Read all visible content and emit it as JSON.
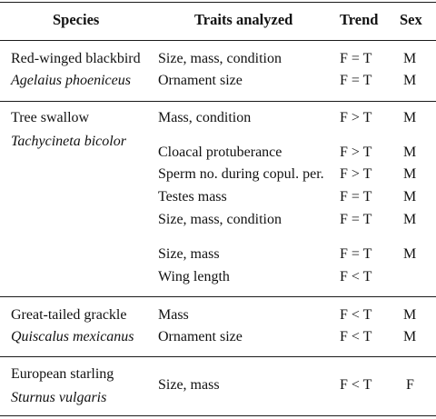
{
  "header": {
    "species": "Species",
    "traits": "Traits analyzed",
    "trend": "Trend",
    "sex": "Sex"
  },
  "groups": [
    {
      "common": "Red-winged blackbird",
      "latin": "Agelaius phoeniceus",
      "rows": [
        {
          "trait": "Size, mass, condition",
          "trend": "F = T",
          "sex": "M"
        },
        {
          "trait": "Ornament size",
          "trend": "F = T",
          "sex": "M"
        }
      ]
    },
    {
      "common": "Tree swallow",
      "latin": "Tachycineta bicolor",
      "rows": [
        {
          "trait": "Mass, condition",
          "trend": "F > T",
          "sex": "M"
        },
        {
          "trait": "Cloacal protuberance",
          "trend": "F > T",
          "sex": "M"
        },
        {
          "trait": "Sperm no. during copul. per.",
          "trend": "F > T",
          "sex": "M"
        },
        {
          "trait": "Testes mass",
          "trend": "F = T",
          "sex": "M"
        },
        {
          "trait": "Size, mass, condition",
          "trend": "F = T",
          "sex": "M"
        },
        {
          "trait": "Size, mass",
          "trend": "F = T",
          "sex": "M"
        },
        {
          "trait": "Wing length",
          "trend": "F < T",
          "sex": ""
        }
      ]
    },
    {
      "common": "Great-tailed grackle",
      "latin": "Quiscalus mexicanus",
      "rows": [
        {
          "trait": "Mass",
          "trend": "F < T",
          "sex": "M"
        },
        {
          "trait": "Ornament size",
          "trend": "F < T",
          "sex": "M"
        }
      ]
    },
    {
      "common": "European starling",
      "latin": "Sturnus vulgaris",
      "rows": [
        {
          "trait": "Size, mass",
          "trend": "F < T",
          "sex": "F"
        }
      ]
    }
  ]
}
